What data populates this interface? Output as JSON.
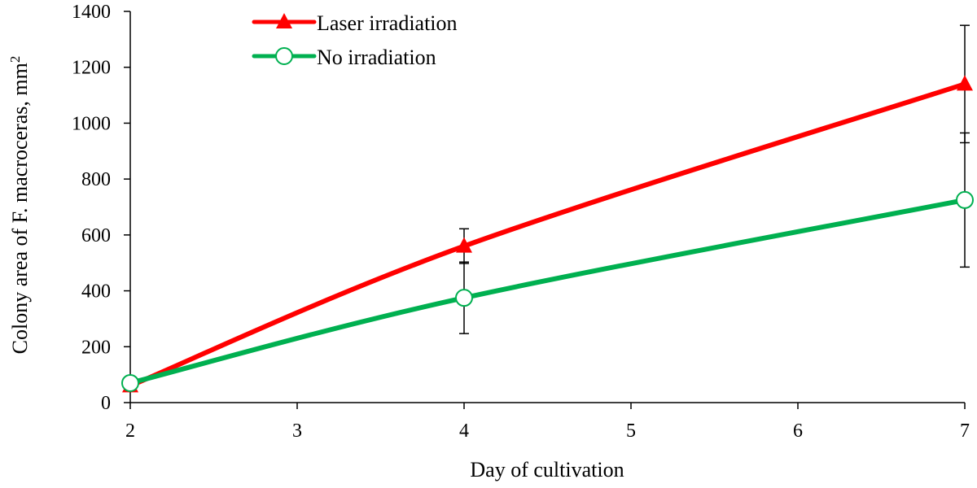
{
  "chart_data": {
    "type": "line",
    "title": "",
    "xlabel": "Day of cultivation",
    "ylabel": "Colony area of F. macroceras, mm",
    "ylabel_superscript": "2",
    "xlim": [
      2,
      7
    ],
    "ylim": [
      0,
      1400
    ],
    "x_ticks": [
      "2",
      "3",
      "4",
      "5",
      "6",
      "7"
    ],
    "y_ticks": [
      "0",
      "200",
      "400",
      "600",
      "800",
      "1000",
      "1200",
      "1400"
    ],
    "grid": false,
    "legend_position": "top-left",
    "series": [
      {
        "name": "Laser irradiation",
        "color": "#ff0000",
        "marker": "triangle",
        "points": [
          {
            "x": 2,
            "y": 60,
            "err": 0
          },
          {
            "x": 4,
            "y": 560,
            "err": 62
          },
          {
            "x": 7,
            "y": 1140,
            "err": 210
          }
        ]
      },
      {
        "name": "No irradiation",
        "color": "#00b050",
        "marker": "circle",
        "points": [
          {
            "x": 2,
            "y": 70,
            "err": 25
          },
          {
            "x": 4,
            "y": 375,
            "err": 128
          },
          {
            "x": 7,
            "y": 725,
            "err": 240
          }
        ]
      }
    ]
  }
}
